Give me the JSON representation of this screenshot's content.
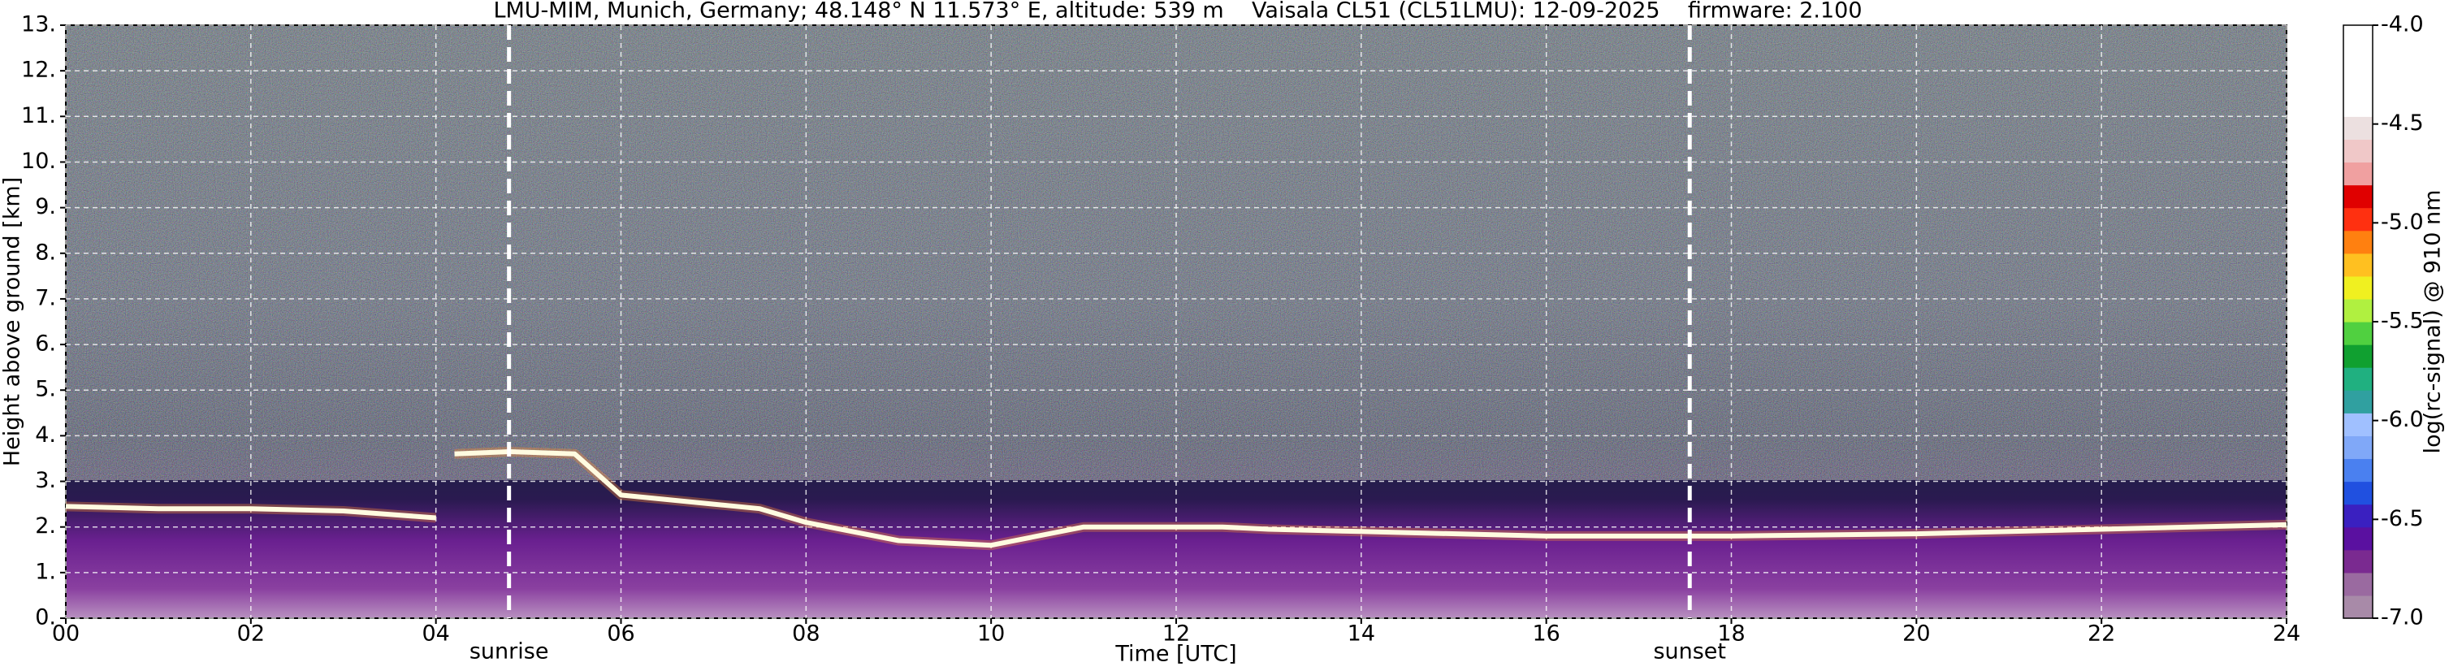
{
  "chart_data": {
    "type": "line",
    "title": "LMU-MIM, Munich, Germany; 48.148° N 11.573° E, altitude: 539 m    Vaisala CL51 (CL51LMU): 12-09-2025    firmware: 2.100",
    "x_label": "Time [UTC]",
    "y_label": "Height above ground [km]",
    "xlim": [
      0,
      24
    ],
    "xticks": [
      {
        "value": 0,
        "label": "00"
      },
      {
        "value": 2,
        "label": "02"
      },
      {
        "value": 4,
        "label": "04"
      },
      {
        "value": 6,
        "label": "06"
      },
      {
        "value": 8,
        "label": "08"
      },
      10,
      12,
      14,
      16,
      18,
      20,
      22,
      24
    ],
    "ylim": [
      0,
      13
    ],
    "yticks": [
      {
        "value": 0,
        "label": "0."
      },
      {
        "value": 1,
        "label": "1."
      },
      {
        "value": 2,
        "label": "2."
      },
      {
        "value": 3,
        "label": "3."
      },
      {
        "value": 4,
        "label": "4."
      },
      {
        "value": 5,
        "label": "5."
      },
      {
        "value": 6,
        "label": "6."
      },
      {
        "value": 7,
        "label": "7."
      },
      {
        "value": 8,
        "label": "8."
      },
      {
        "value": 9,
        "label": "9."
      },
      {
        "value": 10,
        "label": "10."
      },
      {
        "value": 11,
        "label": "11."
      },
      {
        "value": 12,
        "label": "12."
      },
      {
        "value": 13,
        "label": "13."
      }
    ],
    "grid": true,
    "x": [
      0,
      1,
      2,
      3,
      4,
      4.05,
      4.2,
      4.8,
      5.5,
      6,
      7,
      7.5,
      8,
      9,
      10,
      11,
      12,
      12.5,
      13,
      14,
      16,
      18,
      20,
      22,
      24
    ],
    "series": [
      {
        "color": "#fffbe0",
        "values": [
          2.45,
          2.4,
          2.4,
          2.35,
          2.2,
          null,
          3.6,
          3.65,
          3.6,
          2.7,
          2.5,
          2.4,
          2.1,
          1.7,
          1.6,
          2.0,
          2.0,
          2.0,
          1.95,
          1.9,
          1.8,
          1.8,
          1.85,
          1.95,
          2.05
        ]
      }
    ],
    "annotations": [
      {
        "text": "sunrise",
        "x": 4.79
      },
      {
        "text": "sunset",
        "x": 17.55
      }
    ],
    "colorbar": {
      "label": "log(rc-signal) @ 910 nm",
      "clim": [
        -7,
        -4
      ],
      "ticks": [
        {
          "value": -7,
          "label": "-7.0"
        },
        -6.5,
        {
          "value": -6,
          "label": "-6.0"
        },
        -5.5,
        {
          "value": -5,
          "label": "-5.0"
        },
        -4.5,
        {
          "value": -4,
          "label": "-4.0"
        }
      ],
      "colors": [
        "#a88aa8",
        "#9a6aa0",
        "#7a2a90",
        "#5a10a0",
        "#3a20c0",
        "#2050e0",
        "#4a80f0",
        "#80a8f8",
        "#a0c0ff",
        "#30a0a0",
        "#20b080",
        "#10a030",
        "#50d040",
        "#b0f040",
        "#f0f020",
        "#ffc020",
        "#ff8010",
        "#ff3010",
        "#e00000",
        "#f0a0a0",
        "#f0c8c8",
        "#ece0e0",
        "#ffffff",
        "#ffffff",
        "#ffffff",
        "#ffffff"
      ]
    }
  }
}
